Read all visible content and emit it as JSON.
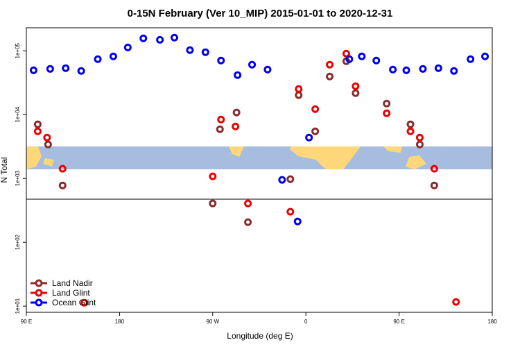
{
  "chart_data": {
    "type": "scatter",
    "title": "0-15N February (Ver 10_MIP)   2015-01-01 to 2020-12-31",
    "x_label": "Longitude (deg E)",
    "y_label": "N Total",
    "log_y": true,
    "xlim": [
      90,
      540
    ],
    "xticks": [
      {
        "value": 90,
        "label": "90 E"
      },
      {
        "value": 180,
        "label": "180"
      },
      {
        "value": 270,
        "label": "90 W"
      },
      {
        "value": 360,
        "label": "0"
      },
      {
        "value": 450,
        "label": "90 E"
      },
      {
        "value": 540,
        "label": "180"
      }
    ],
    "ylim": [
      8,
      230000
    ],
    "yticks": [
      {
        "value": 10,
        "label": "1e+01"
      },
      {
        "value": 100,
        "label": "1e+02"
      },
      {
        "value": 1000,
        "label": "1e+03"
      },
      {
        "value": 10000,
        "label": "1e+04"
      },
      {
        "value": 100000,
        "label": "1e+05"
      }
    ],
    "legend": "bottom-left",
    "series": [
      {
        "name": "Land Nadir",
        "color": "#8b2b2b",
        "x": [
          101,
          111,
          125,
          270,
          293,
          277,
          304,
          345,
          353,
          369,
          383,
          399,
          408,
          438,
          461,
          470,
          484
        ],
        "values": [
          7050,
          3410,
          778,
          406,
          10800,
          5910,
          207,
          975,
          20200,
          5480,
          39600,
          68700,
          21700,
          14900,
          7050,
          3410,
          778
        ]
      },
      {
        "name": "Land Glint",
        "color": "#ee0000",
        "x": [
          101,
          110,
          125,
          146,
          270,
          278,
          292,
          304,
          345,
          353,
          369,
          383,
          399,
          408,
          438,
          461,
          470,
          484,
          505
        ],
        "values": [
          5480,
          4380,
          1420,
          11.3,
          1080,
          8390,
          6530,
          406,
          301,
          25200,
          12200,
          60700,
          90600,
          27900,
          10500,
          5480,
          4380,
          1420,
          11.6
        ]
      },
      {
        "name": "Ocean Glint",
        "color": "#0000ee",
        "x": [
          97,
          113,
          128,
          143,
          159,
          174,
          188,
          203,
          219,
          233,
          248,
          263,
          278,
          294,
          308,
          323,
          337,
          352,
          363,
          402,
          414,
          428,
          444,
          457,
          473,
          488,
          503,
          519,
          533
        ],
        "values": [
          49600,
          52100,
          53500,
          48400,
          74100,
          81800,
          113000,
          157000,
          149000,
          161000,
          102600,
          95100,
          70500,
          41700,
          60700,
          50900,
          951,
          212,
          4380,
          74100,
          81800,
          70500,
          50900,
          49600,
          52100,
          53500,
          48400,
          74100,
          81800
        ]
      }
    ]
  }
}
